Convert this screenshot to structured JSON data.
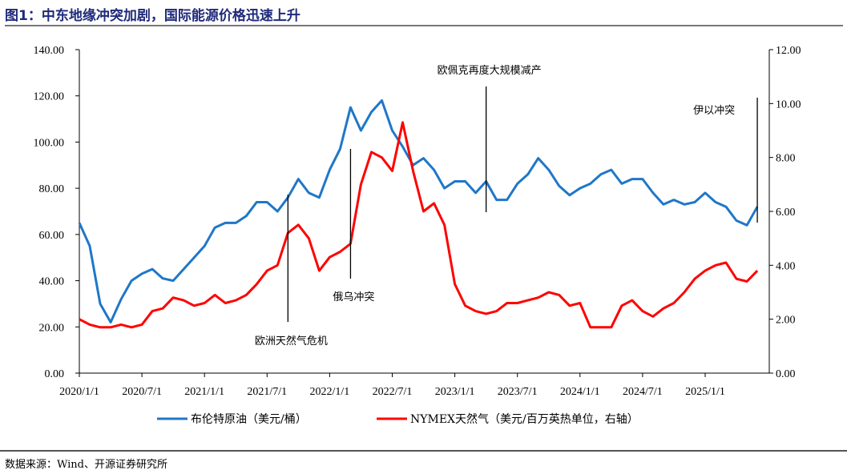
{
  "title": "图1：中东地缘冲突加剧，国际能源价格迅速上升",
  "source": "数据来源：Wind、开源证券研究所",
  "chart_data": {
    "type": "line",
    "title": "",
    "x_ticks": [
      "2020/1/1",
      "2020/7/1",
      "2021/1/1",
      "2021/7/1",
      "2022/1/1",
      "2022/7/1",
      "2023/1/1",
      "2023/7/1",
      "2024/1/1",
      "2024/7/1",
      "2025/1/1"
    ],
    "y_left": {
      "range": [
        0,
        140
      ],
      "ticks": [
        "0.00",
        "20.00",
        "40.00",
        "60.00",
        "80.00",
        "100.00",
        "120.00",
        "140.00"
      ]
    },
    "y_right": {
      "range": [
        0,
        12
      ],
      "ticks": [
        "0.00",
        "2.00",
        "4.00",
        "6.00",
        "8.00",
        "10.00",
        "12.00"
      ]
    },
    "grid": false,
    "legend_position": "bottom",
    "x": [
      "2020-01",
      "2020-02",
      "2020-03",
      "2020-04",
      "2020-05",
      "2020-06",
      "2020-07",
      "2020-08",
      "2020-09",
      "2020-10",
      "2020-11",
      "2020-12",
      "2021-01",
      "2021-02",
      "2021-03",
      "2021-04",
      "2021-05",
      "2021-06",
      "2021-07",
      "2021-08",
      "2021-09",
      "2021-10",
      "2021-11",
      "2021-12",
      "2022-01",
      "2022-02",
      "2022-03",
      "2022-04",
      "2022-05",
      "2022-06",
      "2022-07",
      "2022-08",
      "2022-09",
      "2022-10",
      "2022-11",
      "2022-12",
      "2023-01",
      "2023-02",
      "2023-03",
      "2023-04",
      "2023-05",
      "2023-06",
      "2023-07",
      "2023-08",
      "2023-09",
      "2023-10",
      "2023-11",
      "2023-12",
      "2024-01",
      "2024-02",
      "2024-03",
      "2024-04",
      "2024-05",
      "2024-06",
      "2024-07",
      "2024-08",
      "2024-09",
      "2024-10",
      "2024-11",
      "2024-12",
      "2025-01",
      "2025-02",
      "2025-03",
      "2025-04",
      "2025-05",
      "2025-06"
    ],
    "series": [
      {
        "name": "布伦特原油（美元/桶）",
        "axis": "left",
        "color": "#1f77c8",
        "values": [
          65,
          55,
          30,
          22,
          32,
          40,
          43,
          45,
          41,
          40,
          45,
          50,
          55,
          63,
          65,
          65,
          68,
          74,
          74,
          70,
          76,
          84,
          78,
          76,
          88,
          97,
          115,
          105,
          113,
          118,
          105,
          98,
          90,
          93,
          88,
          80,
          83,
          83,
          78,
          83,
          75,
          75,
          82,
          86,
          93,
          88,
          81,
          77,
          80,
          82,
          86,
          88,
          82,
          84,
          84,
          78,
          73,
          75,
          73,
          74,
          78,
          74,
          72,
          66,
          64,
          72
        ]
      },
      {
        "name": "NYMEX天然气（美元/百万英热单位，右轴）",
        "axis": "right",
        "color": "#ff0000",
        "values": [
          2.0,
          1.8,
          1.7,
          1.7,
          1.8,
          1.7,
          1.8,
          2.3,
          2.4,
          2.8,
          2.7,
          2.5,
          2.6,
          2.9,
          2.6,
          2.7,
          2.9,
          3.3,
          3.8,
          4.0,
          5.2,
          5.5,
          5.0,
          3.8,
          4.3,
          4.5,
          4.8,
          7.0,
          8.2,
          8.0,
          7.5,
          9.3,
          7.5,
          6.0,
          6.3,
          5.5,
          3.3,
          2.5,
          2.3,
          2.2,
          2.3,
          2.6,
          2.6,
          2.7,
          2.8,
          3.0,
          2.9,
          2.5,
          2.6,
          1.7,
          1.7,
          1.7,
          2.5,
          2.7,
          2.3,
          2.1,
          2.4,
          2.6,
          3.0,
          3.5,
          3.8,
          4.0,
          4.1,
          3.5,
          3.4,
          3.8
        ]
      }
    ],
    "annotations": [
      {
        "text": "欧洲天然气危机",
        "x": "2021-09"
      },
      {
        "text": "俄乌冲突",
        "x": "2022-03"
      },
      {
        "text": "欧佩克再度大规模减产",
        "x": "2023-04"
      },
      {
        "text": "伊以冲突",
        "x": "2025-06"
      }
    ]
  }
}
